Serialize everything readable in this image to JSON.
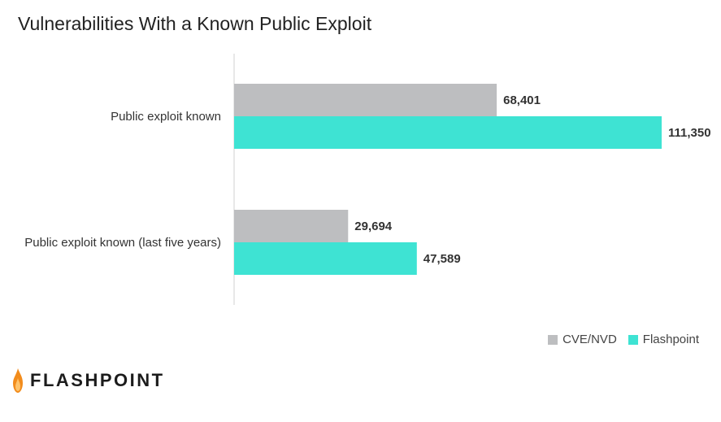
{
  "chart_data": {
    "type": "bar",
    "orientation": "horizontal",
    "title": "Vulnerabilities With a Known Public Exploit",
    "categories": [
      "Public exploit known",
      "Public exploit known (last five years)"
    ],
    "series": [
      {
        "name": "CVE/NVD",
        "values": [
          68401,
          29694
        ],
        "labels": [
          "68,401",
          "29,694"
        ],
        "color": "#bdbec0"
      },
      {
        "name": "Flashpoint",
        "values": [
          111350,
          47589
        ],
        "labels": [
          "111,350",
          "47,589"
        ],
        "color": "#3ee3d3"
      }
    ],
    "xlim": [
      0,
      111350
    ],
    "grid": false,
    "legend_position": "bottom-right"
  },
  "brand": {
    "logo_text": "FLASHPOINT",
    "logo_icon": "flame-icon",
    "flame_color": "#f28c1c"
  }
}
